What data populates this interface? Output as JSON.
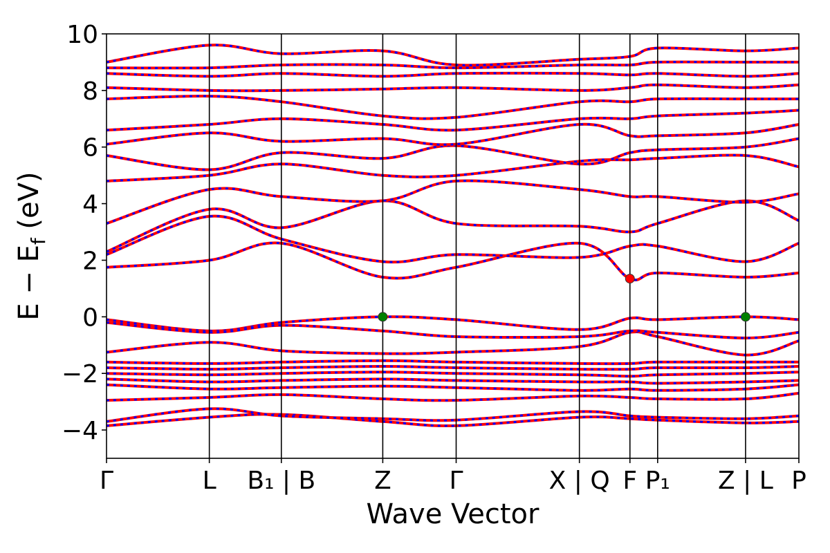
{
  "chart_data": {
    "type": "line",
    "xlabel": "Wave Vector",
    "ylabel": "E − E_f (eV)",
    "ylabel_parts": {
      "main": "E − E",
      "sub": "f",
      "unit": " (eV)"
    },
    "ylim": [
      -5,
      10
    ],
    "yticks": [
      -4,
      -2,
      0,
      2,
      4,
      6,
      8,
      10
    ],
    "ytick_labels": [
      "−4",
      "−2",
      "0",
      "2",
      "4",
      "6",
      "8",
      "10"
    ],
    "xlim": [
      0,
      10
    ],
    "kpath": [
      {
        "pos": 0.0,
        "label": "Γ"
      },
      {
        "pos": 1.485,
        "label": "L"
      },
      {
        "pos": 2.525,
        "label": "B₁ | B"
      },
      {
        "pos": 3.99,
        "label": "Z"
      },
      {
        "pos": 5.05,
        "label": "Γ"
      },
      {
        "pos": 6.83,
        "label": "X | Q"
      },
      {
        "pos": 7.56,
        "label": "F"
      },
      {
        "pos": 7.96,
        "label": "P₁"
      },
      {
        "pos": 9.23,
        "label": "Z | L"
      },
      {
        "pos": 10.0,
        "label": "P"
      }
    ],
    "colors": {
      "band_main": "#ff0000",
      "band_overlay": "#0000ff",
      "vbm": "#008000",
      "cbm": "#ff0000",
      "axis": "#000000"
    },
    "extrema": [
      {
        "name": "VBM",
        "x": 3.99,
        "y": 0.0,
        "color": "#008000"
      },
      {
        "name": "CBM",
        "x": 7.56,
        "y": 1.35,
        "color": "#ff0000"
      },
      {
        "name": "VBM",
        "x": 9.23,
        "y": 0.0,
        "color": "#008000"
      }
    ],
    "bands": [
      {
        "x": [
          0,
          1.485,
          2.525,
          3.99,
          5.05,
          6.83,
          7.56,
          7.96,
          9.23,
          10
        ],
        "y": [
          -3.85,
          -3.55,
          -3.45,
          -3.7,
          -3.85,
          -3.55,
          -3.6,
          -3.65,
          -3.75,
          -3.7
        ]
      },
      {
        "x": [
          0,
          1.485,
          2.525,
          3.99,
          5.05,
          6.83,
          7.56,
          7.96,
          9.23,
          10
        ],
        "y": [
          -3.7,
          -3.25,
          -3.5,
          -3.6,
          -3.65,
          -3.35,
          -3.5,
          -3.55,
          -3.6,
          -3.5
        ]
      },
      {
        "x": [
          0,
          1.485,
          2.525,
          3.99,
          5.05,
          6.83,
          7.56,
          7.96,
          9.23,
          10
        ],
        "y": [
          -2.95,
          -2.85,
          -2.75,
          -2.9,
          -2.95,
          -2.8,
          -2.85,
          -2.9,
          -2.9,
          -2.7
        ]
      },
      {
        "x": [
          0,
          1.485,
          2.525,
          3.99,
          5.05,
          6.83,
          7.56,
          7.96,
          9.23,
          10
        ],
        "y": [
          -2.4,
          -2.55,
          -2.5,
          -2.45,
          -2.5,
          -2.6,
          -2.55,
          -2.6,
          -2.55,
          -2.4
        ]
      },
      {
        "x": [
          0,
          1.485,
          2.525,
          3.99,
          5.05,
          6.83,
          7.56,
          7.96,
          9.23,
          10
        ],
        "y": [
          -2.2,
          -2.3,
          -2.25,
          -2.2,
          -2.25,
          -2.3,
          -2.3,
          -2.35,
          -2.3,
          -2.25
        ]
      },
      {
        "x": [
          0,
          1.485,
          2.525,
          3.99,
          5.05,
          6.83,
          7.56,
          7.96,
          9.23,
          10
        ],
        "y": [
          -2.0,
          -2.05,
          -2.0,
          -1.95,
          -2.0,
          -2.05,
          -2.1,
          -2.05,
          -2.0,
          -1.95
        ]
      },
      {
        "x": [
          0,
          1.485,
          2.525,
          3.99,
          5.05,
          6.83,
          7.56,
          7.96,
          9.23,
          10
        ],
        "y": [
          -1.8,
          -1.85,
          -1.8,
          -1.75,
          -1.8,
          -1.85,
          -1.85,
          -1.8,
          -1.8,
          -1.75
        ]
      },
      {
        "x": [
          0,
          1.485,
          2.525,
          3.99,
          5.05,
          6.83,
          7.56,
          7.96,
          9.23,
          10
        ],
        "y": [
          -1.6,
          -1.65,
          -1.6,
          -1.55,
          -1.6,
          -1.65,
          -1.65,
          -1.6,
          -1.6,
          -1.6
        ]
      },
      {
        "x": [
          0,
          1.485,
          2.525,
          3.99,
          5.05,
          6.83,
          7.56,
          7.96,
          9.23,
          10
        ],
        "y": [
          -1.25,
          -0.9,
          -1.2,
          -1.3,
          -1.25,
          -1.05,
          -0.55,
          -0.7,
          -1.35,
          -0.85
        ]
      },
      {
        "x": [
          0,
          1.485,
          2.525,
          3.99,
          5.05,
          6.83,
          7.56,
          7.96,
          9.23,
          10
        ],
        "y": [
          -0.1,
          -0.5,
          -0.2,
          0.0,
          -0.1,
          -0.45,
          -0.05,
          -0.1,
          0.0,
          -0.1
        ]
      },
      {
        "x": [
          0,
          1.485,
          2.525,
          3.99,
          5.05,
          6.83,
          7.56,
          7.96,
          9.23,
          10
        ],
        "y": [
          -0.2,
          -0.55,
          -0.3,
          -0.5,
          -0.7,
          -0.7,
          -0.5,
          -0.55,
          -0.75,
          -0.55
        ]
      },
      {
        "x": [
          0,
          1.485,
          2.525,
          3.99,
          5.05,
          6.83,
          7.56,
          7.96,
          9.23,
          10
        ],
        "y": [
          1.75,
          2.0,
          2.6,
          1.4,
          1.75,
          2.6,
          1.35,
          1.55,
          1.4,
          1.55
        ]
      },
      {
        "x": [
          0,
          1.485,
          2.525,
          3.99,
          5.05,
          6.83,
          7.56,
          7.96,
          9.23,
          10
        ],
        "y": [
          2.2,
          3.55,
          2.75,
          1.95,
          2.2,
          2.1,
          2.5,
          2.5,
          1.95,
          2.6
        ]
      },
      {
        "x": [
          0,
          1.485,
          2.525,
          3.99,
          5.05,
          6.83,
          7.56,
          7.96,
          9.23,
          10
        ],
        "y": [
          2.3,
          3.8,
          3.15,
          4.1,
          3.3,
          3.2,
          3.0,
          3.3,
          4.1,
          3.4
        ]
      },
      {
        "x": [
          0,
          1.485,
          2.525,
          3.99,
          5.05,
          6.83,
          7.56,
          7.96,
          9.23,
          10
        ],
        "y": [
          3.3,
          4.5,
          4.25,
          4.1,
          4.8,
          4.5,
          4.25,
          4.25,
          4.05,
          4.35
        ]
      },
      {
        "x": [
          0,
          1.485,
          2.525,
          3.99,
          5.05,
          6.83,
          7.56,
          7.96,
          9.23,
          10
        ],
        "y": [
          4.8,
          5.0,
          5.4,
          5.0,
          5.0,
          5.5,
          5.55,
          5.6,
          5.7,
          5.3
        ]
      },
      {
        "x": [
          0,
          1.485,
          2.525,
          3.99,
          5.05,
          6.83,
          7.56,
          7.96,
          9.23,
          10
        ],
        "y": [
          5.7,
          5.2,
          5.8,
          5.6,
          6.05,
          5.4,
          5.8,
          5.9,
          6.0,
          6.3
        ]
      },
      {
        "x": [
          0,
          1.485,
          2.525,
          3.99,
          5.05,
          6.83,
          7.56,
          7.96,
          9.23,
          10
        ],
        "y": [
          6.1,
          6.5,
          6.2,
          6.3,
          6.1,
          6.8,
          6.4,
          6.4,
          6.5,
          6.8
        ]
      },
      {
        "x": [
          0,
          1.485,
          2.525,
          3.99,
          5.05,
          6.83,
          7.56,
          7.96,
          9.23,
          10
        ],
        "y": [
          6.6,
          6.8,
          7.0,
          6.8,
          6.6,
          7.0,
          7.0,
          7.1,
          7.2,
          7.3
        ]
      },
      {
        "x": [
          0,
          1.485,
          2.525,
          3.99,
          5.05,
          6.83,
          7.56,
          7.96,
          9.23,
          10
        ],
        "y": [
          7.7,
          7.8,
          7.6,
          7.1,
          7.05,
          7.6,
          7.6,
          7.7,
          7.7,
          7.7
        ]
      },
      {
        "x": [
          0,
          1.485,
          2.525,
          3.99,
          5.05,
          6.83,
          7.56,
          7.96,
          9.23,
          10
        ],
        "y": [
          8.1,
          8.0,
          8.0,
          8.05,
          8.1,
          8.0,
          8.1,
          8.2,
          8.1,
          8.2
        ]
      },
      {
        "x": [
          0,
          1.485,
          2.525,
          3.99,
          5.05,
          6.83,
          7.56,
          7.96,
          9.23,
          10
        ],
        "y": [
          8.6,
          8.5,
          8.6,
          8.5,
          8.6,
          8.6,
          8.55,
          8.6,
          8.5,
          8.6
        ]
      },
      {
        "x": [
          0,
          1.485,
          2.525,
          3.99,
          5.05,
          6.83,
          7.56,
          7.96,
          9.23,
          10
        ],
        "y": [
          8.8,
          8.8,
          8.9,
          8.9,
          8.8,
          8.9,
          8.9,
          9.0,
          9.0,
          9.0
        ]
      },
      {
        "x": [
          0,
          1.485,
          2.525,
          3.99,
          5.05,
          6.83,
          7.56,
          7.96,
          9.23,
          10
        ],
        "y": [
          9.0,
          9.6,
          9.3,
          9.4,
          8.9,
          9.1,
          9.2,
          9.5,
          9.4,
          9.5
        ]
      }
    ]
  }
}
